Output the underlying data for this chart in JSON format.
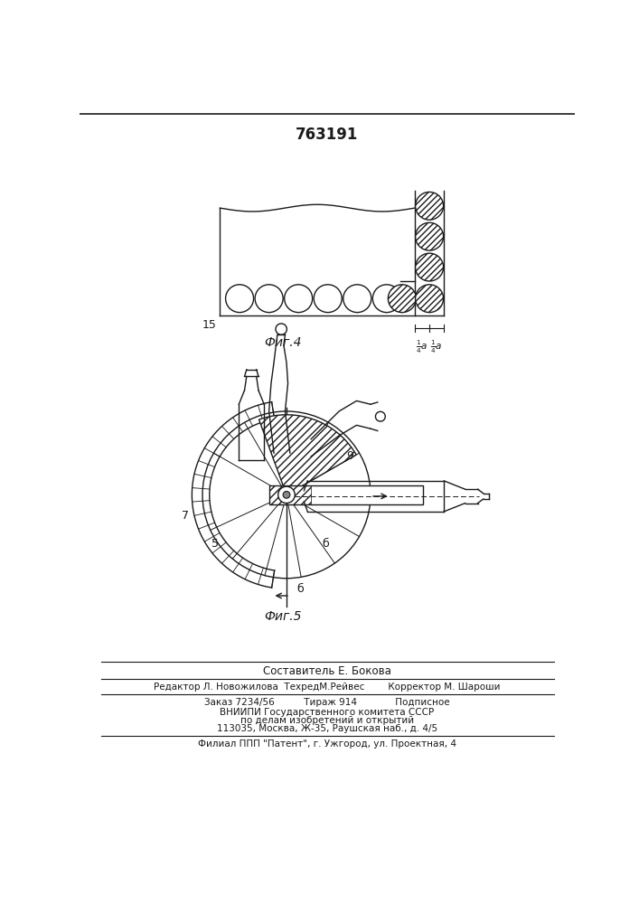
{
  "title": "763191",
  "fig4_label": "Фиг.4",
  "fig5_label": "Фиг.5",
  "label_15": "15",
  "footer_line1": "Составитель Е. Бокова",
  "footer_line2": "Редактор Л. Новожилова  ТехредМ.Рейвес        Корректор М. Шароши",
  "footer_line3": "Заказ 7234/56          Тираж 914             Подписное",
  "footer_line4": "ВНИИПИ Государственного комитета СССР",
  "footer_line5": "по делам изобретений и открытий",
  "footer_line6": "113035, Москва, Ж-35, Раушская наб., д. 4/5",
  "footer_line7": "Филиал ППП \"Патент\", г. Ужгород, ул. Проектная, 4",
  "bg_color": "#ffffff",
  "line_color": "#1a1a1a"
}
